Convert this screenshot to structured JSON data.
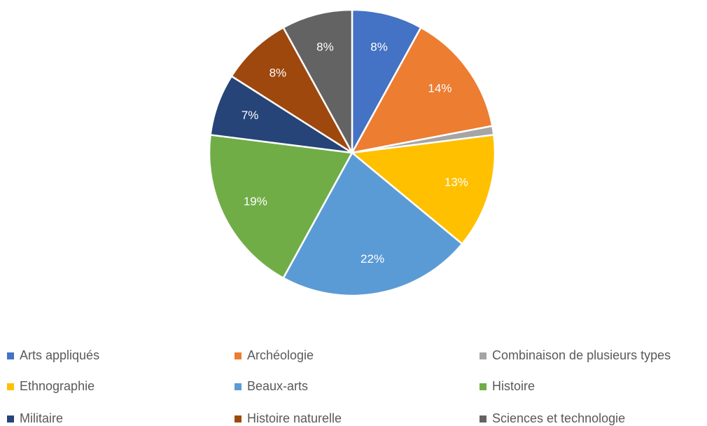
{
  "chart_data": {
    "type": "pie",
    "categories": [
      "Arts appliqués",
      "Archéologie",
      "Combinaison de plusieurs types",
      "Ethnographie",
      "Beaux-arts",
      "Histoire",
      "Militaire",
      "Histoire naturelle",
      "Sciences et technologie"
    ],
    "values": [
      8,
      14,
      1,
      13,
      22,
      19,
      7,
      8,
      8
    ],
    "value_labels": [
      "8%",
      "14%",
      null,
      "13%",
      "22%",
      "19%",
      "7%",
      "8%",
      "8%"
    ],
    "colors": [
      "#4472c4",
      "#ed7d31",
      "#a5a5a5",
      "#ffc000",
      "#5b9bd5",
      "#70ad47",
      "#264478",
      "#9e480e",
      "#636363"
    ],
    "legend": "bottom"
  }
}
